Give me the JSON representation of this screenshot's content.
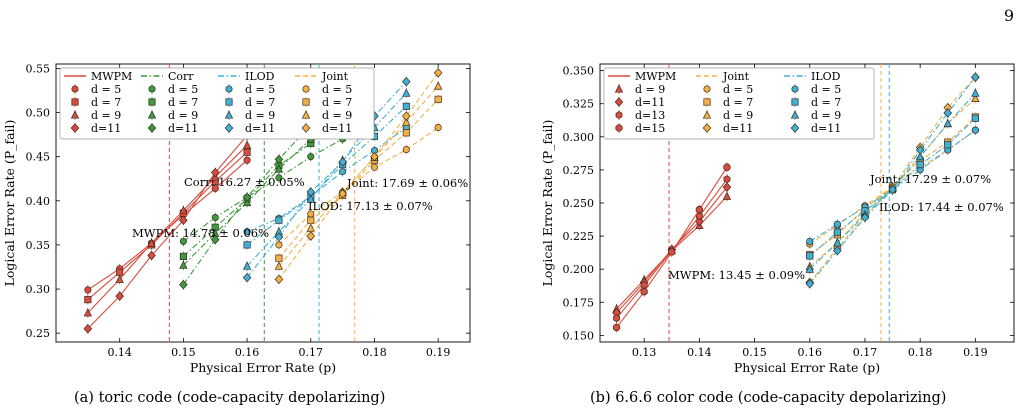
{
  "page_number": "9",
  "captions": [
    "(a) toric code (code-capacity depolarizing)",
    "(b) 6.6.6 color code (code-capacity depolarizing)"
  ],
  "chart_data": [
    {
      "type": "line",
      "xlabel": "Physical Error Rate (p)",
      "ylabel": "Logical Error Rate (P_fail)",
      "xlim": [
        0.13,
        0.195
      ],
      "ylim": [
        0.24,
        0.555
      ],
      "xticks": [
        "0.14",
        "0.15",
        "0.16",
        "0.17",
        "0.18",
        "0.19"
      ],
      "yticks": [
        "0.25",
        "0.30",
        "0.35",
        "0.40",
        "0.45",
        "0.50",
        "0.55"
      ],
      "legend_position": "top-left",
      "legend_columns": [
        "MWPM",
        "Corr",
        "ILOD",
        "Joint"
      ],
      "decoders": [
        {
          "name": "MWPM",
          "color": "#d94c3e",
          "line_style": "solid",
          "threshold_x": 0.1478,
          "threshold_label": "MWPM: 14.78 ± 0.06%",
          "series": [
            {
              "name": "d = 5",
              "marker": "circle",
              "x": [
                0.135,
                0.14,
                0.145,
                0.15,
                0.155,
                0.16
              ],
              "y": [
                0.299,
                0.323,
                0.352,
                0.384,
                0.414,
                0.446
              ]
            },
            {
              "name": "d = 7",
              "marker": "square",
              "x": [
                0.135,
                0.14,
                0.145,
                0.15,
                0.155,
                0.16
              ],
              "y": [
                0.288,
                0.319,
                0.35,
                0.386,
                0.422,
                0.455
              ]
            },
            {
              "name": "d = 9",
              "marker": "triangle",
              "x": [
                0.135,
                0.14,
                0.145,
                0.15,
                0.155,
                0.16
              ],
              "y": [
                0.273,
                0.311,
                0.352,
                0.389,
                0.427,
                0.463
              ]
            },
            {
              "name": "d=11",
              "marker": "diamond",
              "x": [
                0.135,
                0.14,
                0.145,
                0.15,
                0.155,
                0.16
              ],
              "y": [
                0.255,
                0.292,
                0.338,
                0.378,
                0.432,
                0.474
              ]
            }
          ]
        },
        {
          "name": "Corr",
          "color": "#3e9a3e",
          "line_style": "dashdot",
          "threshold_x": 0.1627,
          "threshold_label": "Corr: 16.27 ± 0.05%",
          "series": [
            {
              "name": "d = 5",
              "marker": "circle",
              "x": [
                0.15,
                0.155,
                0.16,
                0.165,
                0.17,
                0.175
              ],
              "y": [
                0.354,
                0.381,
                0.404,
                0.426,
                0.45,
                0.47
              ]
            },
            {
              "name": "d = 7",
              "marker": "square",
              "x": [
                0.15,
                0.155,
                0.16,
                0.165,
                0.17,
                0.175
              ],
              "y": [
                0.337,
                0.37,
                0.402,
                0.44,
                0.465,
                0.501
              ]
            },
            {
              "name": "d = 9",
              "marker": "triangle",
              "x": [
                0.15,
                0.155,
                0.16,
                0.165,
                0.17,
                0.175
              ],
              "y": [
                0.327,
                0.363,
                0.398,
                0.436,
                0.47,
                0.523
              ]
            },
            {
              "name": "d=11",
              "marker": "diamond",
              "x": [
                0.15,
                0.155,
                0.16,
                0.165,
                0.17,
                0.175
              ],
              "y": [
                0.305,
                0.356,
                0.404,
                0.447,
                0.486,
                0.542
              ]
            }
          ]
        },
        {
          "name": "ILOD",
          "color": "#3fb0d6",
          "line_style": "dashdot",
          "threshold_x": 0.1713,
          "threshold_label": "ILOD: 17.13 ± 0.07%",
          "series": [
            {
              "name": "d = 5",
              "marker": "circle",
              "x": [
                0.16,
                0.165,
                0.17,
                0.175,
                0.18,
                0.185
              ],
              "y": [
                0.365,
                0.38,
                0.405,
                0.433,
                0.457,
                0.483
              ]
            },
            {
              "name": "d = 7",
              "marker": "square",
              "x": [
                0.16,
                0.165,
                0.17,
                0.175,
                0.18,
                0.185
              ],
              "y": [
                0.35,
                0.378,
                0.404,
                0.441,
                0.473,
                0.507
              ]
            },
            {
              "name": "d = 9",
              "marker": "triangle",
              "x": [
                0.16,
                0.165,
                0.17,
                0.175,
                0.18,
                0.185
              ],
              "y": [
                0.326,
                0.365,
                0.402,
                0.446,
                0.483,
                0.522
              ]
            },
            {
              "name": "d=11",
              "marker": "diamond",
              "x": [
                0.16,
                0.165,
                0.17,
                0.175,
                0.18,
                0.185
              ],
              "y": [
                0.313,
                0.359,
                0.41,
                0.444,
                0.496,
                0.535
              ]
            }
          ]
        },
        {
          "name": "Joint",
          "color": "#f3b145",
          "line_style": "dashed",
          "threshold_x": 0.1769,
          "threshold_label": "Joint: 17.69 ± 0.06%",
          "series": [
            {
              "name": "d = 5",
              "marker": "circle",
              "x": [
                0.165,
                0.17,
                0.175,
                0.18,
                0.185,
                0.19
              ],
              "y": [
                0.35,
                0.385,
                0.41,
                0.438,
                0.458,
                0.483
              ]
            },
            {
              "name": "d = 7",
              "marker": "square",
              "x": [
                0.165,
                0.17,
                0.175,
                0.18,
                0.185,
                0.19
              ],
              "y": [
                0.335,
                0.378,
                0.406,
                0.446,
                0.477,
                0.515
              ]
            },
            {
              "name": "d = 9",
              "marker": "triangle",
              "x": [
                0.165,
                0.17,
                0.175,
                0.18,
                0.185,
                0.19
              ],
              "y": [
                0.326,
                0.369,
                0.41,
                0.449,
                0.489,
                0.53
              ]
            },
            {
              "name": "d=11",
              "marker": "diamond",
              "x": [
                0.165,
                0.17,
                0.175,
                0.18,
                0.185,
                0.19
              ],
              "y": [
                0.311,
                0.36,
                0.408,
                0.45,
                0.496,
                0.545
              ]
            }
          ]
        }
      ]
    },
    {
      "type": "line",
      "xlabel": "Physical Error Rate (p)",
      "ylabel": "Logical Error Rate (P_fail)",
      "xlim": [
        0.122,
        0.197
      ],
      "ylim": [
        0.145,
        0.355
      ],
      "xticks": [
        "0.13",
        "0.14",
        "0.15",
        "0.16",
        "0.17",
        "0.18",
        "0.19"
      ],
      "yticks": [
        "0.150",
        "0.175",
        "0.200",
        "0.225",
        "0.250",
        "0.275",
        "0.300",
        "0.325",
        "0.350"
      ],
      "legend_position": "top-left",
      "legend_columns": [
        "MWPM",
        "Joint",
        "ILOD"
      ],
      "decoders": [
        {
          "name": "MWPM",
          "color": "#d94c3e",
          "line_style": "solid",
          "threshold_x": 0.1345,
          "threshold_label": "MWPM: 13.45 ± 0.09%",
          "series": [
            {
              "name": "d = 9",
              "marker": "triangle",
              "x": [
                0.125,
                0.13,
                0.135,
                0.14,
                0.145
              ],
              "y": [
                0.17,
                0.192,
                0.214,
                0.233,
                0.255
              ]
            },
            {
              "name": "d=11",
              "marker": "diamond",
              "x": [
                0.125,
                0.13,
                0.135,
                0.14,
                0.145
              ],
              "y": [
                0.167,
                0.19,
                0.215,
                0.236,
                0.262
              ]
            },
            {
              "name": "d=13",
              "marker": "hexagon",
              "x": [
                0.125,
                0.13,
                0.135,
                0.14,
                0.145
              ],
              "y": [
                0.163,
                0.188,
                0.214,
                0.24,
                0.268
              ]
            },
            {
              "name": "d=15",
              "marker": "octagon",
              "x": [
                0.125,
                0.13,
                0.135,
                0.14,
                0.145
              ],
              "y": [
                0.156,
                0.183,
                0.213,
                0.245,
                0.277
              ]
            }
          ]
        },
        {
          "name": "Joint",
          "color": "#f3b145",
          "line_style": "dashed",
          "threshold_x": 0.1729,
          "threshold_label": "Joint: 17.29 ± 0.07%",
          "series": [
            {
              "name": "d = 5",
              "marker": "circle",
              "x": [
                0.16,
                0.165,
                0.17,
                0.175,
                0.18,
                0.185,
                0.19
              ],
              "y": [
                0.219,
                0.233,
                0.248,
                0.262,
                0.277,
                0.29,
                0.305
              ]
            },
            {
              "name": "d = 7",
              "marker": "square",
              "x": [
                0.16,
                0.165,
                0.17,
                0.175,
                0.18,
                0.185,
                0.19
              ],
              "y": [
                0.211,
                0.226,
                0.246,
                0.262,
                0.282,
                0.296,
                0.315
              ]
            },
            {
              "name": "d = 9",
              "marker": "triangle",
              "x": [
                0.16,
                0.165,
                0.17,
                0.175,
                0.18,
                0.185,
                0.19
              ],
              "y": [
                0.202,
                0.22,
                0.243,
                0.262,
                0.285,
                0.31,
                0.329
              ]
            },
            {
              "name": "d=11",
              "marker": "diamond",
              "x": [
                0.16,
                0.165,
                0.17,
                0.175,
                0.18,
                0.185,
                0.19
              ],
              "y": [
                0.19,
                0.216,
                0.24,
                0.262,
                0.292,
                0.322,
                0.345
              ]
            }
          ]
        },
        {
          "name": "ILOD",
          "color": "#3fb0d6",
          "line_style": "dashdot",
          "threshold_x": 0.1744,
          "threshold_label": "ILOD: 17.44 ± 0.07%",
          "series": [
            {
              "name": "d = 5",
              "marker": "circle",
              "x": [
                0.16,
                0.165,
                0.17,
                0.175,
                0.18,
                0.185,
                0.19
              ],
              "y": [
                0.221,
                0.234,
                0.247,
                0.26,
                0.275,
                0.29,
                0.305
              ]
            },
            {
              "name": "d = 7",
              "marker": "square",
              "x": [
                0.16,
                0.165,
                0.17,
                0.175,
                0.18,
                0.185,
                0.19
              ],
              "y": [
                0.21,
                0.228,
                0.244,
                0.26,
                0.279,
                0.294,
                0.314
              ]
            },
            {
              "name": "d = 9",
              "marker": "triangle",
              "x": [
                0.16,
                0.165,
                0.17,
                0.175,
                0.18,
                0.185,
                0.19
              ],
              "y": [
                0.2,
                0.22,
                0.241,
                0.261,
                0.285,
                0.31,
                0.333
              ]
            },
            {
              "name": "d=11",
              "marker": "diamond",
              "x": [
                0.16,
                0.165,
                0.17,
                0.175,
                0.18,
                0.185,
                0.19
              ],
              "y": [
                0.189,
                0.214,
                0.239,
                0.26,
                0.29,
                0.318,
                0.345
              ]
            }
          ]
        }
      ]
    }
  ]
}
